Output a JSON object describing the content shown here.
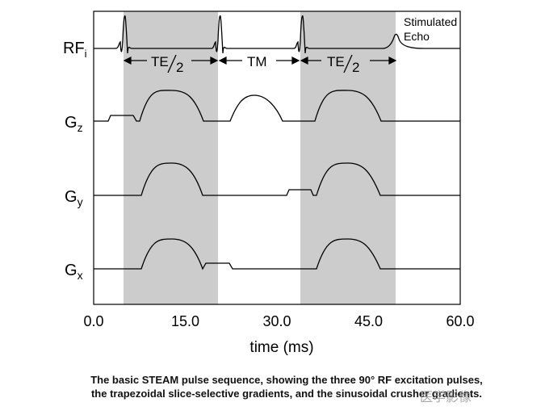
{
  "axis": {
    "xlabel": "time (ms)",
    "ticks": [
      "0.0",
      "15.0",
      "30.0",
      "45.0",
      "60.0"
    ],
    "xlim": [
      0,
      60
    ]
  },
  "rows": {
    "rf": {
      "label": "RF",
      "sub": "i"
    },
    "gz": {
      "label": "G",
      "sub": "z"
    },
    "gy": {
      "label": "G",
      "sub": "y"
    },
    "gx": {
      "label": "G",
      "sub": "x"
    }
  },
  "annotations": {
    "te": "TE",
    "te_half": "2",
    "tm": "TM",
    "echo_line1": "Stimulated",
    "echo_line2": "Echo"
  },
  "caption": {
    "line1": "The basic STEAM pulse sequence, showing the three 90° RF excitation pulses,",
    "line2": "the trapezoidal slice-selective gradients, and the sinusoidal crusher gradients."
  },
  "watermark": "医学影像",
  "colors": {
    "shade": "#cccccc",
    "line": "#000000"
  }
}
